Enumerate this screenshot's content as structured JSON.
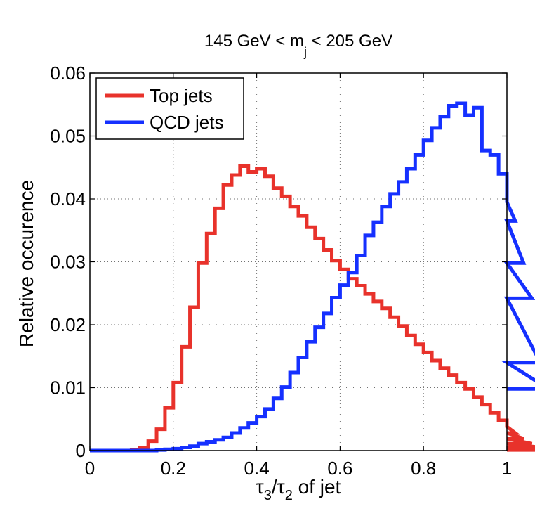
{
  "chart_data": {
    "type": "line",
    "title": {
      "main": "145 GeV < m",
      "sub": "j",
      "tail": " < 205 GeV"
    },
    "xlabel": {
      "t1": "τ",
      "s1": "3",
      "mid": "/",
      "t2": "τ",
      "s2": "2",
      "tail": " of jet"
    },
    "ylabel": "Relative occurence",
    "xlim": [
      0,
      1
    ],
    "ylim": [
      0,
      0.06
    ],
    "xticks": [
      0,
      0.2,
      0.4,
      0.6,
      0.8,
      1
    ],
    "xtick_labels": [
      "0",
      "0.2",
      "0.4",
      "0.6",
      "0.8",
      "1"
    ],
    "yticks": [
      0,
      0.01,
      0.02,
      0.03,
      0.04,
      0.05,
      0.06
    ],
    "ytick_labels": [
      "0",
      "0.01",
      "0.02",
      "0.03",
      "0.04",
      "0.05",
      "0.06"
    ],
    "grid": true,
    "legend_position": "top-left",
    "bin_width": 0.02,
    "series": [
      {
        "name": "Top jets",
        "color": "#e8322b",
        "bin_edges_start": 0,
        "values": [
          0,
          0,
          0,
          0,
          0,
          0.0001,
          0.0005,
          0.0015,
          0.0034,
          0.0068,
          0.0108,
          0.0165,
          0.0228,
          0.0298,
          0.0345,
          0.0385,
          0.0422,
          0.0438,
          0.0452,
          0.0443,
          0.0448,
          0.0436,
          0.0417,
          0.0404,
          0.0388,
          0.0373,
          0.0355,
          0.0337,
          0.0319,
          0.0302,
          0.0288,
          0.0273,
          0.0262,
          0.0249,
          0.0237,
          0.0226,
          0.0212,
          0.0198,
          0.0183,
          0.0169,
          0.0156,
          0.0143,
          0.0131,
          0.012,
          0.0108,
          0.0098,
          0.0085,
          0.0073,
          0.006,
          0.0048,
          0.0038,
          0.0028,
          0.0019,
          0.0011,
          0.0005,
          0.0001
        ]
      },
      {
        "name": "QCD jets",
        "color": "#1530ff",
        "bin_edges_start": 0,
        "values": [
          0,
          0,
          0,
          0,
          0,
          0,
          0,
          0,
          0.0001,
          0.0002,
          0.0003,
          0.0005,
          0.0007,
          0.0011,
          0.0014,
          0.0017,
          0.0021,
          0.0028,
          0.0036,
          0.0044,
          0.0054,
          0.0066,
          0.0083,
          0.0101,
          0.0124,
          0.0148,
          0.0173,
          0.0196,
          0.0218,
          0.0243,
          0.0263,
          0.0283,
          0.031,
          0.0342,
          0.0363,
          0.0388,
          0.0408,
          0.0427,
          0.0448,
          0.047,
          0.0493,
          0.0513,
          0.0531,
          0.0548,
          0.0552,
          0.0533,
          0.0545,
          0.0477,
          0.047,
          0.044,
          0.0395,
          0.0365,
          0.0298,
          0.0242,
          0.014,
          0.0098
        ]
      }
    ]
  }
}
